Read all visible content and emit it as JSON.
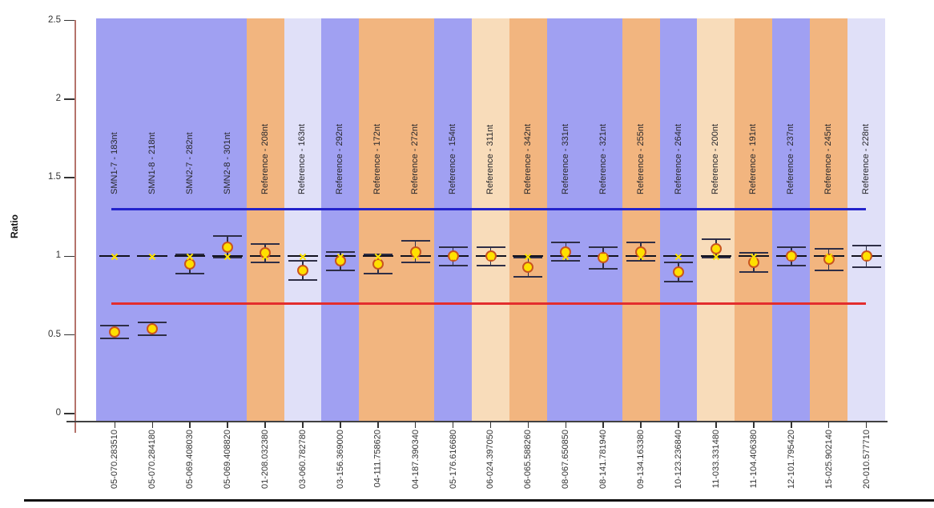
{
  "chart_data": {
    "type": "scatter",
    "title": "",
    "ylabel": "Ratio",
    "xlabel": "",
    "ylim": [
      0,
      2.5
    ],
    "grid": false,
    "legend": null,
    "y_ticks": [
      {
        "value": 0,
        "label": "0"
      },
      {
        "value": 0.5,
        "label": "0.5"
      },
      {
        "value": 1,
        "label": "1"
      },
      {
        "value": 1.5,
        "label": "1.5"
      },
      {
        "value": 2,
        "label": "2"
      },
      {
        "value": 2.5,
        "label": "2.5"
      }
    ],
    "threshold_lines": [
      {
        "name": "upper-threshold",
        "value": 1.3,
        "color": "#2323cb"
      },
      {
        "name": "lower-threshold",
        "value": 0.7,
        "color": "#e32d2d"
      }
    ],
    "reference_marker": {
      "value": 1.0,
      "dash_color": "#12121e",
      "x_color": "#ffe400"
    },
    "band_colors": {
      "blue": "#a0a0f2",
      "orange": "#f2b57f",
      "lavender": "#e0e0f8",
      "cream": "#f8dcba"
    },
    "point_style": {
      "fill": "#ffdf00",
      "stroke": "#c9541f",
      "errorbar_color": "#2e2e46"
    },
    "axis_colors": {
      "y_line": "#b4736b",
      "x_line": "#414141",
      "tick": "#333333"
    },
    "probes": [
      {
        "label": "SMN1-7 - 183nt",
        "x_label": "05-070.283510",
        "ratio": 0.52,
        "err": 0.04,
        "band": "blue"
      },
      {
        "label": "SMN1-8 - 218nt",
        "x_label": "05-070.284180",
        "ratio": 0.54,
        "err": 0.04,
        "band": "blue"
      },
      {
        "label": "SMN2-7 - 282nt",
        "x_label": "05-069.408030",
        "ratio": 0.95,
        "err": 0.06,
        "band": "blue"
      },
      {
        "label": "SMN2-8 - 301nt",
        "x_label": "05-069.408820",
        "ratio": 1.06,
        "err": 0.07,
        "band": "blue"
      },
      {
        "label": "Reference - 208nt",
        "x_label": "01-208.032380",
        "ratio": 1.02,
        "err": 0.06,
        "band": "orange"
      },
      {
        "label": "Reference - 163nt",
        "x_label": "03-060.782780",
        "ratio": 0.91,
        "err": 0.06,
        "band": "lavender"
      },
      {
        "label": "Reference - 292nt",
        "x_label": "03-156.369000",
        "ratio": 0.97,
        "err": 0.06,
        "band": "blue"
      },
      {
        "label": "Reference - 172nt",
        "x_label": "04-111.758620",
        "ratio": 0.95,
        "err": 0.06,
        "band": "orange"
      },
      {
        "label": "Reference - 272nt",
        "x_label": "04-187.390340",
        "ratio": 1.03,
        "err": 0.07,
        "band": "orange"
      },
      {
        "label": "Reference - 154nt",
        "x_label": "05-176.616680",
        "ratio": 1.0,
        "err": 0.06,
        "band": "blue"
      },
      {
        "label": "Reference - 311nt",
        "x_label": "06-024.397050",
        "ratio": 1.0,
        "err": 0.06,
        "band": "cream"
      },
      {
        "label": "Reference - 342nt",
        "x_label": "06-065.588260",
        "ratio": 0.93,
        "err": 0.06,
        "band": "orange"
      },
      {
        "label": "Reference - 331nt",
        "x_label": "08-067.650850",
        "ratio": 1.03,
        "err": 0.06,
        "band": "blue"
      },
      {
        "label": "Reference - 321nt",
        "x_label": "08-141.781940",
        "ratio": 0.99,
        "err": 0.07,
        "band": "blue"
      },
      {
        "label": "Reference - 255nt",
        "x_label": "09-134.163380",
        "ratio": 1.03,
        "err": 0.06,
        "band": "orange"
      },
      {
        "label": "Reference - 264nt",
        "x_label": "10-123.236840",
        "ratio": 0.9,
        "err": 0.06,
        "band": "blue"
      },
      {
        "label": "Reference - 200nt",
        "x_label": "11-033.331480",
        "ratio": 1.05,
        "err": 0.06,
        "band": "cream"
      },
      {
        "label": "Reference - 191nt",
        "x_label": "11-104.406380",
        "ratio": 0.96,
        "err": 0.06,
        "band": "orange"
      },
      {
        "label": "Reference - 237nt",
        "x_label": "12-101.795420",
        "ratio": 1.0,
        "err": 0.06,
        "band": "blue"
      },
      {
        "label": "Reference - 245nt",
        "x_label": "15-025.902140",
        "ratio": 0.98,
        "err": 0.07,
        "band": "orange"
      },
      {
        "label": "Reference - 228nt",
        "x_label": "20-010.577710",
        "ratio": 1.0,
        "err": 0.07,
        "band": "lavender"
      }
    ]
  }
}
